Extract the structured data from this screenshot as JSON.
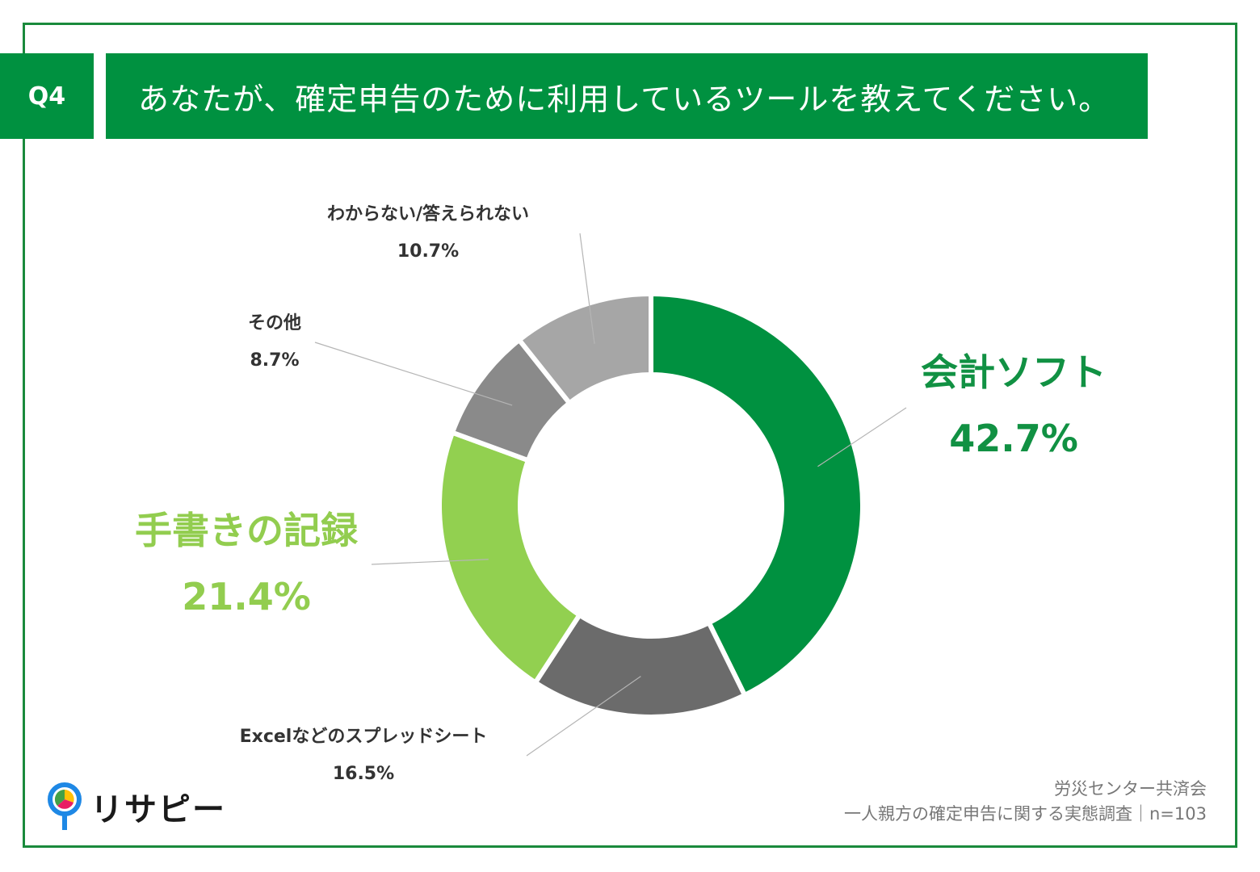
{
  "question": {
    "number": "Q4",
    "text": "あなたが、確定申告のために利用しているツールを教えてください。"
  },
  "chart_data": {
    "type": "pie",
    "style": "donut",
    "categories": [
      "会計ソフト",
      "Excelなどのスプレッドシート",
      "手書きの記録",
      "その他",
      "わからない/答えられない"
    ],
    "values": [
      42.7,
      16.5,
      21.4,
      8.7,
      10.7
    ],
    "value_labels": [
      "42.7%",
      "16.5%",
      "21.4%",
      "8.7%",
      "10.7%"
    ],
    "colors": [
      "#009140",
      "#6b6b6b",
      "#92d050",
      "#8a8a8a",
      "#a6a6a6"
    ],
    "unit": "%"
  },
  "source": {
    "org": "労災センター共済会",
    "survey": "一人親方の確定申告に関する実態調査｜n=103"
  },
  "logo": {
    "text": "リサピー"
  }
}
